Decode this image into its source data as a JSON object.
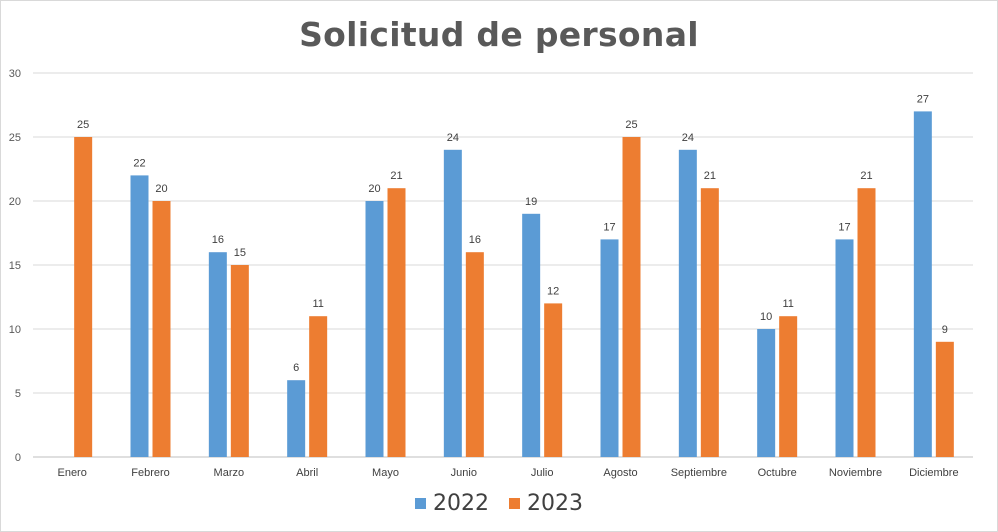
{
  "chart_data": {
    "type": "bar",
    "title": "Solicitud de personal",
    "xlabel": "",
    "ylabel": "",
    "categories": [
      "Enero",
      "Febrero",
      "Marzo",
      "Abril",
      "Mayo",
      "Junio",
      "Julio",
      "Agosto",
      "Septiembre",
      "Octubre",
      "Noviembre",
      "Diciembre"
    ],
    "series": [
      {
        "name": "2022",
        "color": "#5b9bd5",
        "values": [
          null,
          22,
          16,
          6,
          20,
          24,
          19,
          17,
          24,
          10,
          17,
          27
        ]
      },
      {
        "name": "2023",
        "color": "#ed7d31",
        "values": [
          25,
          20,
          15,
          11,
          21,
          16,
          12,
          25,
          21,
          11,
          21,
          9
        ]
      }
    ],
    "ylim": [
      0,
      30
    ],
    "yticks": [
      0,
      5,
      10,
      15,
      20,
      25,
      30
    ],
    "grid": true,
    "legend_position": "bottom",
    "data_labels": true
  }
}
